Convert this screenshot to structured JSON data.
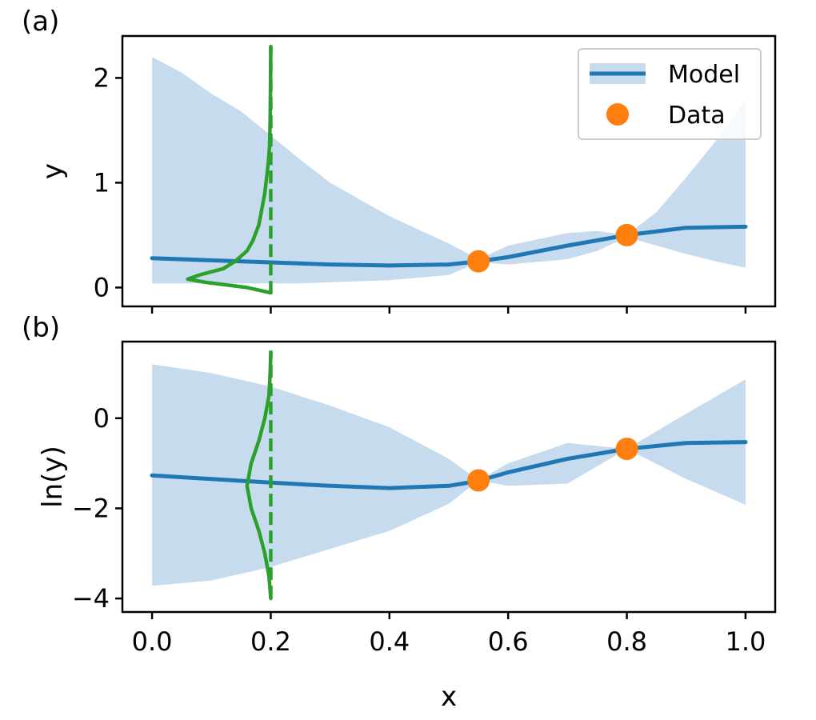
{
  "colors": {
    "model": "#1f77b4",
    "band": "#c6dbed",
    "data": "#ff7f0e",
    "density": "#2ca02c"
  },
  "chart_data": [
    {
      "panel_label": "(a)",
      "type": "line",
      "xlabel": "",
      "ylabel": "y",
      "xlim": [
        -0.05,
        1.05
      ],
      "ylim": [
        -0.18,
        2.4
      ],
      "xticks": [
        0.0,
        0.2,
        0.4,
        0.6,
        0.8,
        1.0
      ],
      "xtick_labels": [
        "",
        "",
        "",
        "",
        "",
        ""
      ],
      "yticks": [
        0,
        1,
        2
      ],
      "ytick_labels": [
        "0",
        "1",
        "2"
      ],
      "legend": {
        "position": "top-right",
        "entries": [
          "Model",
          "Data"
        ]
      },
      "series": [
        {
          "name": "Model",
          "x": [
            0.0,
            0.1,
            0.2,
            0.3,
            0.4,
            0.5,
            0.55,
            0.6,
            0.7,
            0.8,
            0.9,
            1.0
          ],
          "y": [
            0.28,
            0.26,
            0.24,
            0.22,
            0.21,
            0.22,
            0.25,
            0.29,
            0.4,
            0.5,
            0.57,
            0.58
          ]
        },
        {
          "name": "Model band",
          "x": [
            0.0,
            0.05,
            0.1,
            0.15,
            0.2,
            0.25,
            0.3,
            0.4,
            0.5,
            0.55,
            0.6,
            0.7,
            0.75,
            0.8,
            0.85,
            0.9,
            0.95,
            1.0
          ],
          "lower": [
            0.04,
            0.04,
            0.04,
            0.04,
            0.04,
            0.04,
            0.05,
            0.07,
            0.12,
            0.24,
            0.22,
            0.27,
            0.35,
            0.48,
            0.4,
            0.32,
            0.25,
            0.19
          ],
          "upper": [
            2.2,
            2.05,
            1.85,
            1.68,
            1.45,
            1.22,
            1.0,
            0.68,
            0.42,
            0.27,
            0.4,
            0.52,
            0.54,
            0.5,
            0.72,
            1.05,
            1.4,
            1.8
          ]
        },
        {
          "name": "Data",
          "x": [
            0.55,
            0.8
          ],
          "y": [
            0.25,
            0.5
          ]
        },
        {
          "name": "Density",
          "x0": 0.2,
          "y": [
            -0.05,
            0.0,
            0.05,
            0.08,
            0.12,
            0.18,
            0.25,
            0.35,
            0.45,
            0.6,
            0.75,
            0.9,
            1.05,
            1.2,
            1.35,
            1.6,
            1.9,
            2.3
          ],
          "offset": [
            0.0,
            -0.04,
            -0.11,
            -0.14,
            -0.12,
            -0.08,
            -0.06,
            -0.04,
            -0.03,
            -0.02,
            -0.015,
            -0.01,
            -0.007,
            -0.004,
            -0.002,
            -0.001,
            -0.0005,
            0.0
          ]
        },
        {
          "name": "Density baseline",
          "x": [
            0.2,
            0.2
          ],
          "y": [
            -0.06,
            2.3
          ]
        }
      ]
    },
    {
      "panel_label": "(b)",
      "type": "line",
      "xlabel": "x",
      "ylabel": "ln(y)",
      "xlim": [
        -0.05,
        1.05
      ],
      "ylim": [
        -4.3,
        1.7
      ],
      "xticks": [
        0.0,
        0.2,
        0.4,
        0.6,
        0.8,
        1.0
      ],
      "xtick_labels": [
        "0.0",
        "0.2",
        "0.4",
        "0.6",
        "0.8",
        "1.0"
      ],
      "yticks": [
        0,
        -2,
        -4
      ],
      "ytick_labels": [
        "0",
        "−2",
        "−4"
      ],
      "series": [
        {
          "name": "Model",
          "x": [
            0.0,
            0.1,
            0.2,
            0.3,
            0.4,
            0.5,
            0.55,
            0.6,
            0.7,
            0.8,
            0.9,
            1.0
          ],
          "y": [
            -1.27,
            -1.35,
            -1.43,
            -1.5,
            -1.55,
            -1.5,
            -1.39,
            -1.2,
            -0.9,
            -0.68,
            -0.55,
            -0.53
          ]
        },
        {
          "name": "Model band",
          "x": [
            0.0,
            0.1,
            0.2,
            0.3,
            0.4,
            0.5,
            0.55,
            0.6,
            0.7,
            0.8,
            0.9,
            1.0
          ],
          "lower": [
            -3.72,
            -3.6,
            -3.3,
            -2.9,
            -2.5,
            -1.9,
            -1.38,
            -1.5,
            -1.45,
            -0.68,
            -1.35,
            -1.92
          ],
          "upper": [
            1.2,
            1.0,
            0.7,
            0.28,
            -0.2,
            -0.9,
            -1.38,
            -1.0,
            -0.55,
            -0.68,
            0.1,
            0.86
          ]
        },
        {
          "name": "Data",
          "x": [
            0.55,
            0.8
          ],
          "y": [
            -1.38,
            -0.68
          ]
        },
        {
          "name": "Density",
          "x0": 0.2,
          "y": [
            -4.0,
            -3.5,
            -3.0,
            -2.5,
            -2.0,
            -1.5,
            -1.0,
            -0.5,
            0.0,
            0.5,
            1.0,
            1.45
          ],
          "offset": [
            0.0,
            -0.003,
            -0.01,
            -0.02,
            -0.033,
            -0.04,
            -0.033,
            -0.02,
            -0.01,
            -0.003,
            -0.001,
            0.0
          ]
        },
        {
          "name": "Density baseline",
          "x": [
            0.2,
            0.2
          ],
          "y": [
            -4.0,
            1.5
          ]
        }
      ]
    }
  ]
}
